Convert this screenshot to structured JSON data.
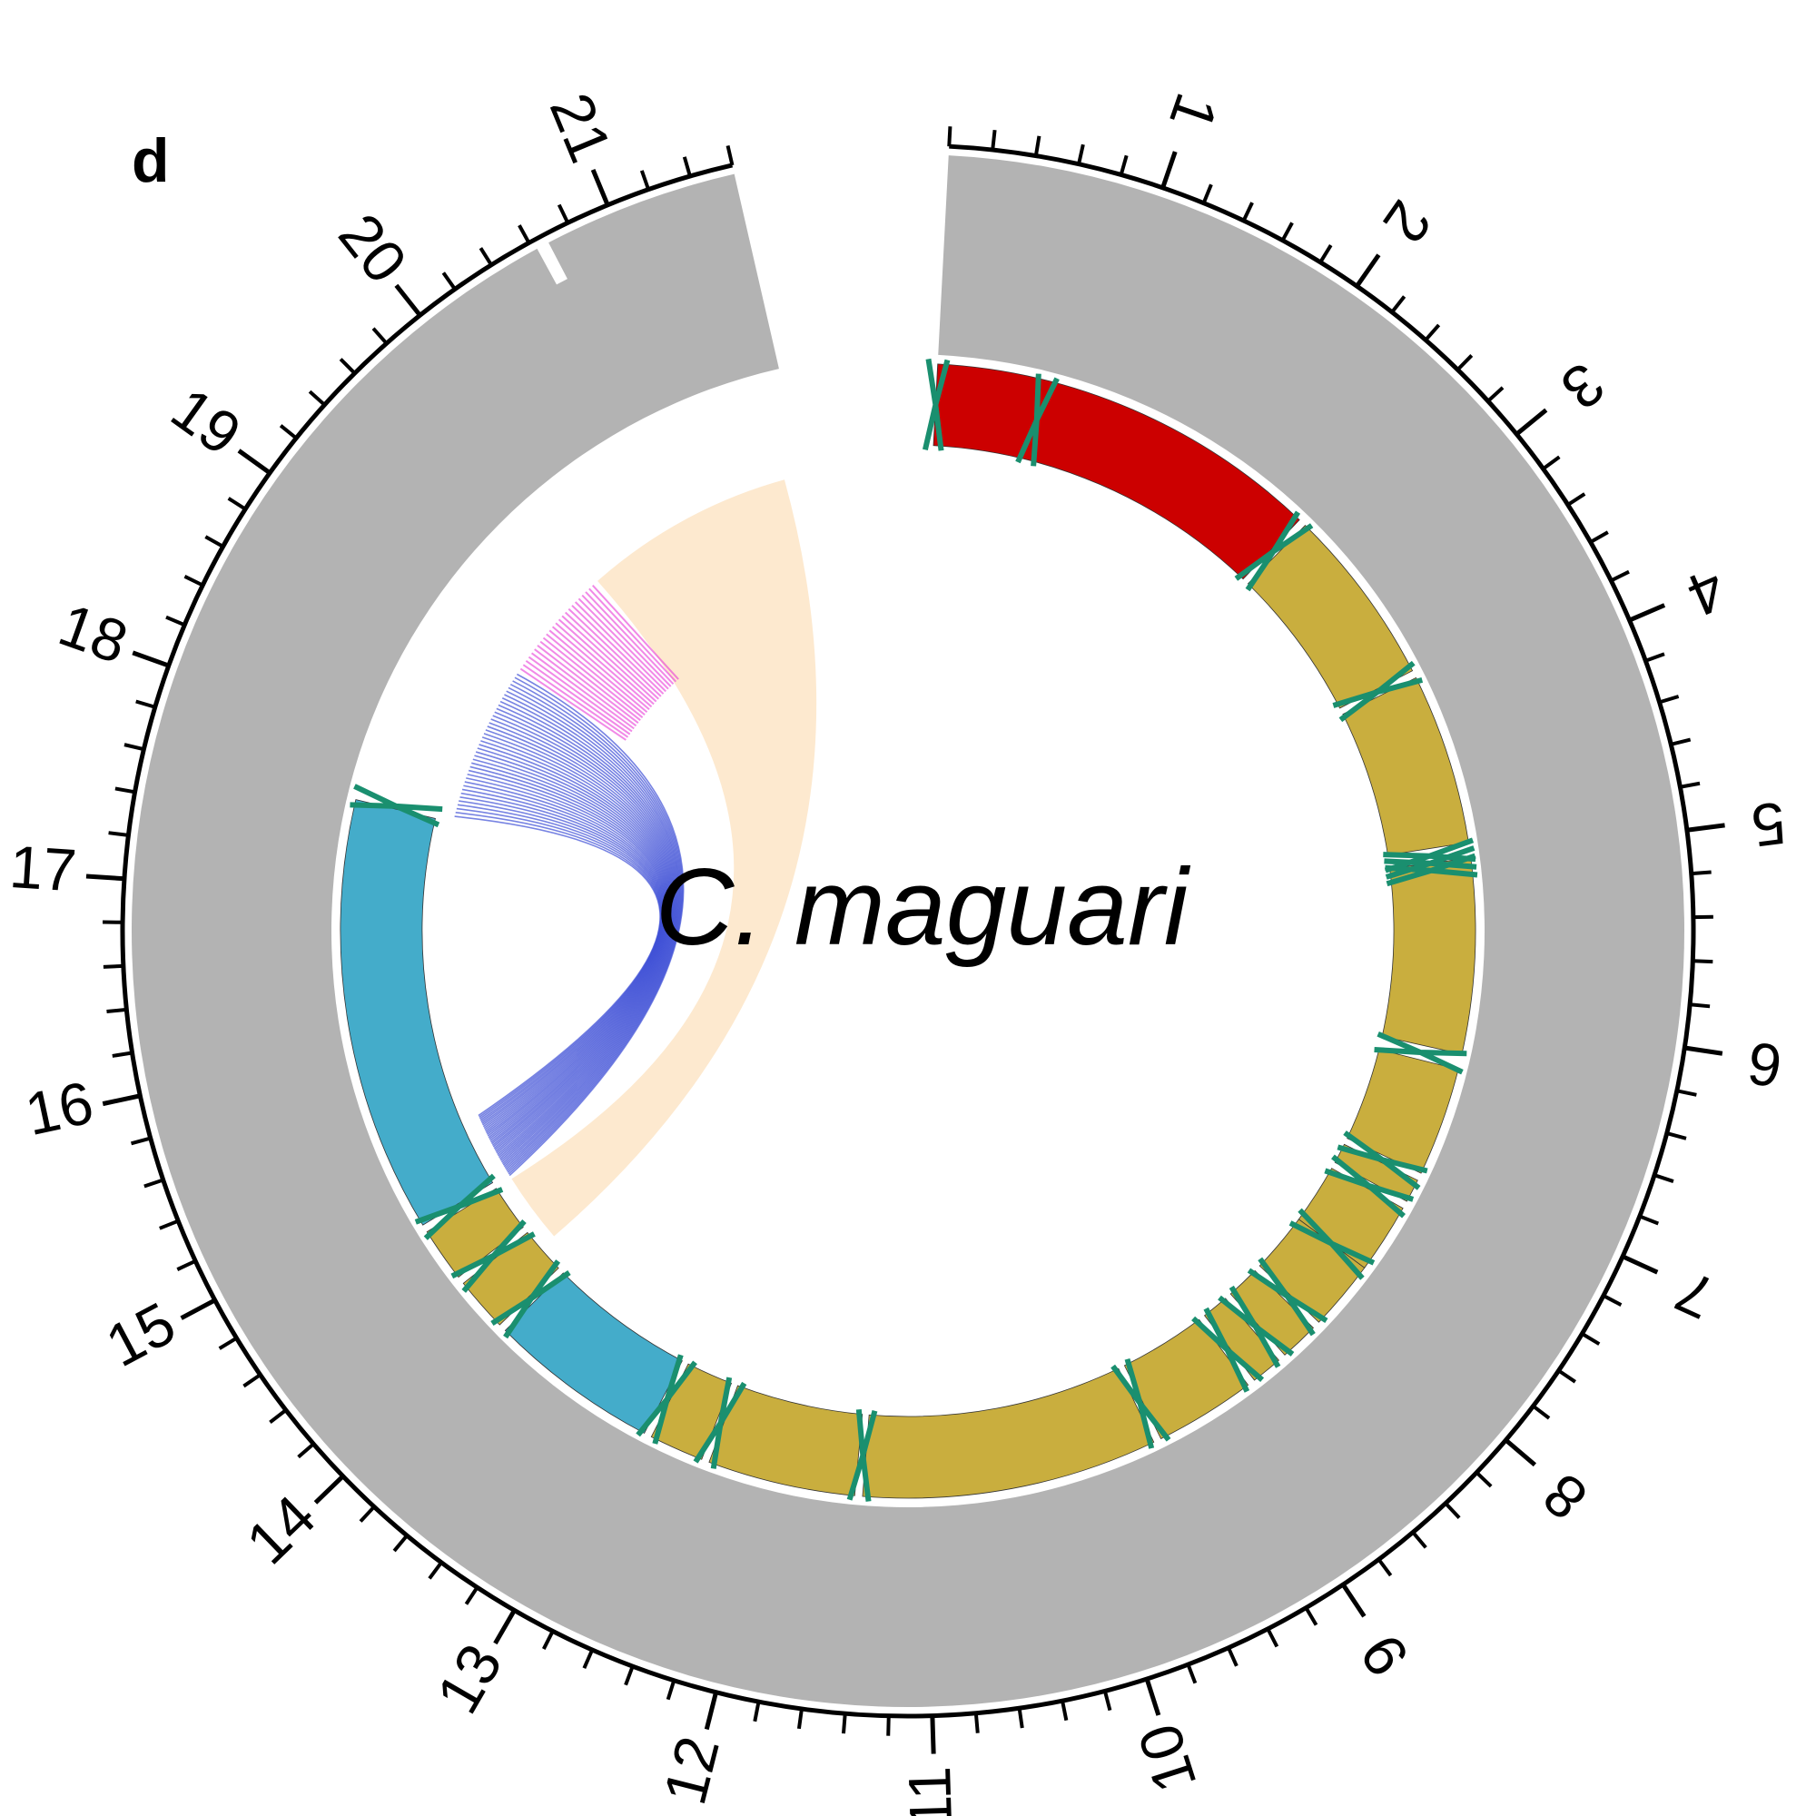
{
  "panel_label": "d",
  "species_label": "C. maguari",
  "axis": {
    "max_kb": 21.6,
    "gap_kb": 1.0,
    "start_offset_deg": 3.0,
    "major_ticks": [
      {
        "kb": 1,
        "label": "1"
      },
      {
        "kb": 2,
        "label": "2"
      },
      {
        "kb": 3,
        "label": "3"
      },
      {
        "kb": 4,
        "label": "4"
      },
      {
        "kb": 5,
        "label": "5"
      },
      {
        "kb": 6,
        "label": "6"
      },
      {
        "kb": 7,
        "label": "7"
      },
      {
        "kb": 8,
        "label": "8"
      },
      {
        "kb": 9,
        "label": "9"
      },
      {
        "kb": 10,
        "label": "10"
      },
      {
        "kb": 11,
        "label": "11"
      },
      {
        "kb": 12,
        "label": "12"
      },
      {
        "kb": 13,
        "label": "13"
      },
      {
        "kb": 14,
        "label": "14"
      },
      {
        "kb": 15,
        "label": "15"
      },
      {
        "kb": 16,
        "label": "16"
      },
      {
        "kb": 17,
        "label": "17"
      },
      {
        "kb": 18,
        "label": "18"
      },
      {
        "kb": 19,
        "label": "19"
      },
      {
        "kb": 20,
        "label": "20"
      },
      {
        "kb": 21,
        "label": "21"
      }
    ],
    "minor_step_kb": 0.2
  },
  "colors": {
    "depth": "#b3b3b3",
    "red": "#cc0000",
    "blue": "#44acca",
    "gold": "#c9ae3e",
    "trna": "#1a8f6f",
    "peach": "#fde9cf",
    "links_blue": "#3d4fd6",
    "links_pink": "#e83ad7"
  },
  "genes": [
    {
      "start": 0.0,
      "end": 2.55,
      "color": "red"
    },
    {
      "start": 2.6,
      "end": 3.75,
      "color": "gold"
    },
    {
      "start": 3.8,
      "end": 4.9,
      "color": "gold"
    },
    {
      "start": 5.0,
      "end": 6.25,
      "color": "gold"
    },
    {
      "start": 6.35,
      "end": 7.05,
      "color": "gold"
    },
    {
      "start": 7.1,
      "end": 7.25,
      "color": "gold"
    },
    {
      "start": 7.3,
      "end": 7.75,
      "color": "gold"
    },
    {
      "start": 7.75,
      "end": 8.2,
      "color": "gold"
    },
    {
      "start": 8.25,
      "end": 8.5,
      "color": "gold"
    },
    {
      "start": 8.55,
      "end": 8.75,
      "color": "gold"
    },
    {
      "start": 8.8,
      "end": 9.45,
      "color": "gold"
    },
    {
      "start": 9.5,
      "end": 11.4,
      "color": "gold"
    },
    {
      "start": 11.45,
      "end": 12.4,
      "color": "gold"
    },
    {
      "start": 12.45,
      "end": 12.8,
      "color": "gold"
    },
    {
      "start": 12.85,
      "end": 13.95,
      "color": "blue"
    },
    {
      "start": 14.0,
      "end": 14.35,
      "color": "gold"
    },
    {
      "start": 14.4,
      "end": 14.75,
      "color": "gold"
    },
    {
      "start": 14.8,
      "end": 17.6,
      "color": "blue"
    }
  ],
  "trnas": [
    0.0,
    0.7,
    2.57,
    3.77,
    4.95,
    5.0,
    5.05,
    6.3,
    7.08,
    7.28,
    7.75,
    8.22,
    8.52,
    8.77,
    9.47,
    11.42,
    12.42,
    12.82,
    13.98,
    14.37,
    14.78,
    17.62
  ],
  "links": {
    "blue_source": [
      17.65,
      18.85
    ],
    "blue_target": [
      14.78,
      15.3
    ],
    "pink_block": [
      18.9,
      19.75
    ],
    "peach_source": [
      19.8,
      21.45
    ],
    "peach_target": [
      14.2,
      14.75
    ]
  }
}
